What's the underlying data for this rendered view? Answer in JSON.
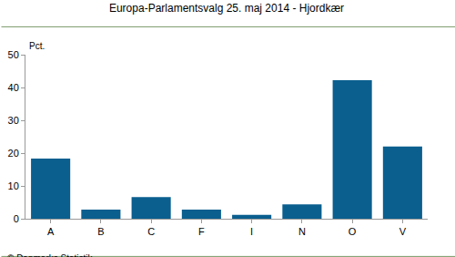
{
  "chart_data": {
    "type": "bar",
    "title": "Europa-Parlamentsvalg 25. maj 2014 - Hjordkær",
    "ylabel": "Pct.",
    "annotations": [
      "© Danmarks Statistik"
    ],
    "categories": [
      "A",
      "B",
      "C",
      "F",
      "I",
      "N",
      "O",
      "V"
    ],
    "values": [
      18.3,
      2.8,
      6.6,
      2.8,
      1.2,
      4.4,
      42.2,
      22.0
    ],
    "color": "#0a5f8f",
    "ylim": [
      0,
      50
    ],
    "yticks": [
      0,
      10,
      20,
      30,
      40,
      50
    ],
    "grid": false
  }
}
